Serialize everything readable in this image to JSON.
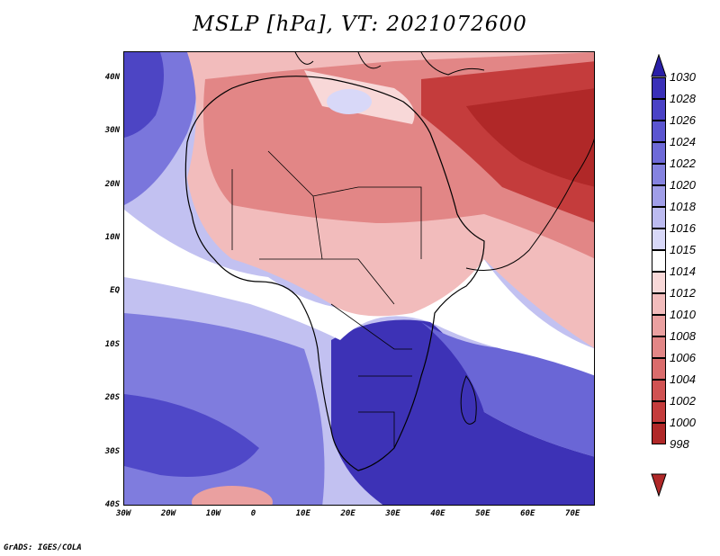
{
  "title": "MSLP [hPa], VT: 2021072600",
  "map": {
    "lon_range": [
      -30,
      75
    ],
    "lat_range": [
      -40,
      45
    ],
    "lon_ticks": [
      {
        "lon": -30,
        "label": "30W"
      },
      {
        "lon": -20,
        "label": "20W"
      },
      {
        "lon": -10,
        "label": "10W"
      },
      {
        "lon": 0,
        "label": "0"
      },
      {
        "lon": 10,
        "label": "10E"
      },
      {
        "lon": 20,
        "label": "20E"
      },
      {
        "lon": 30,
        "label": "30E"
      },
      {
        "lon": 40,
        "label": "40E"
      },
      {
        "lon": 50,
        "label": "50E"
      },
      {
        "lon": 60,
        "label": "60E"
      },
      {
        "lon": 70,
        "label": "70E"
      }
    ],
    "lat_ticks": [
      {
        "lat": 40,
        "label": "40N"
      },
      {
        "lat": 30,
        "label": "30N"
      },
      {
        "lat": 20,
        "label": "20N"
      },
      {
        "lat": 10,
        "label": "10N"
      },
      {
        "lat": 0,
        "label": "EQ"
      },
      {
        "lat": -10,
        "label": "10S"
      },
      {
        "lat": -20,
        "label": "20S"
      },
      {
        "lat": -30,
        "label": "30S"
      },
      {
        "lat": -40,
        "label": "40S"
      }
    ]
  },
  "colorbar": {
    "levels": [
      {
        "label": "1030",
        "color": "#2a1fa8"
      },
      {
        "label": "1028",
        "color": "#3a30b8"
      },
      {
        "label": "1026",
        "color": "#4a42c6"
      },
      {
        "label": "1024",
        "color": "#5b55d0"
      },
      {
        "label": "1022",
        "color": "#6e6ad8"
      },
      {
        "label": "1020",
        "color": "#8583e0"
      },
      {
        "label": "1018",
        "color": "#a09ee8"
      },
      {
        "label": "1016",
        "color": "#bcbbf0"
      },
      {
        "label": "1015",
        "color": "#d8d8f8"
      },
      {
        "label": "1014",
        "color": "#ffffff"
      },
      {
        "label": "1012",
        "color": "#f8d8d8"
      },
      {
        "label": "1010",
        "color": "#f2bcbc"
      },
      {
        "label": "1008",
        "color": "#eaa0a0"
      },
      {
        "label": "1006",
        "color": "#e28686"
      },
      {
        "label": "1004",
        "color": "#da6c6c"
      },
      {
        "label": "1002",
        "color": "#d05252"
      },
      {
        "label": "1000",
        "color": "#c43c3c"
      },
      {
        "label": "998",
        "color": "#b02828"
      }
    ]
  },
  "credit": "GrADS: IGES/COLA"
}
